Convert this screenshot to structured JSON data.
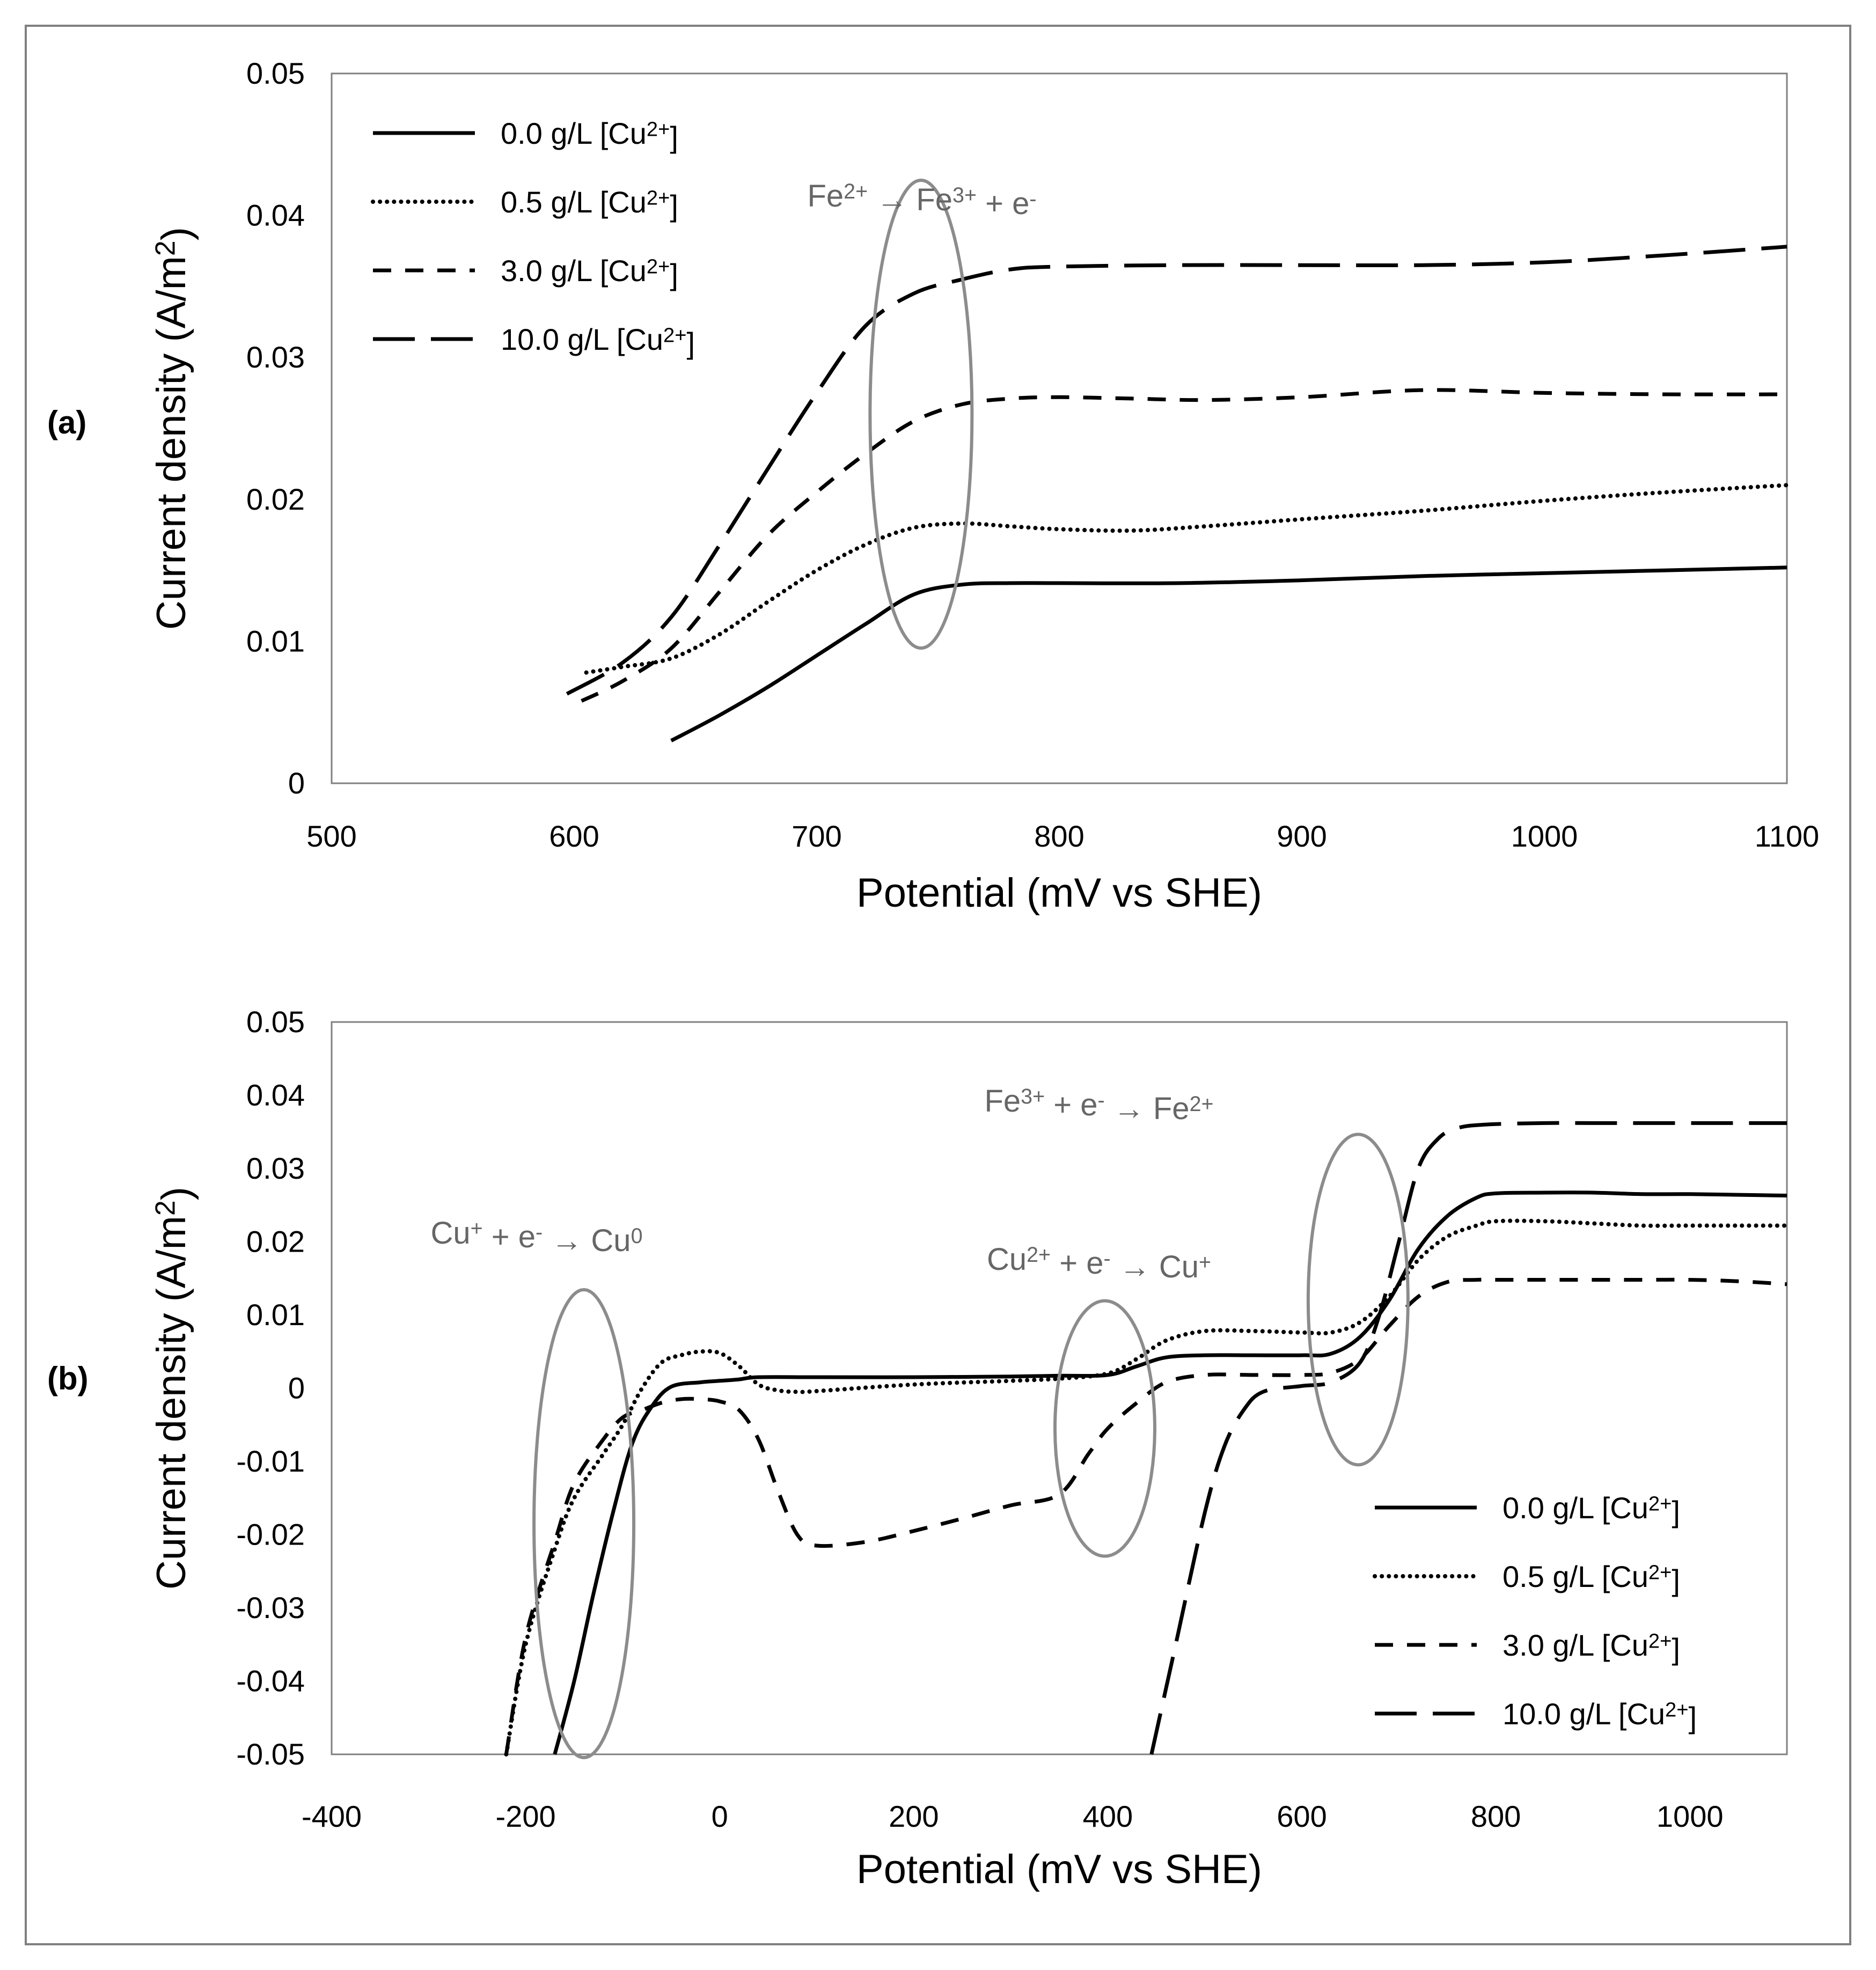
{
  "legend_labels": [
    "0.0 g/L [Cu2+]",
    "0.5 g/L [Cu2+]",
    "3.0 g/L [Cu2+]",
    "10.0 g/L [Cu2+]"
  ],
  "chart_data": [
    {
      "panel_label": "(a)",
      "type": "line",
      "title": "",
      "xlabel": "Potential (mV vs SHE)",
      "ylabel": "Current density (A/m2)",
      "xlim": [
        500,
        1100
      ],
      "ylim": [
        0,
        0.05
      ],
      "x_ticks": [
        "500",
        "600",
        "700",
        "800",
        "900",
        "1000",
        "1100"
      ],
      "y_ticks": [
        "0",
        "0.01",
        "0.02",
        "0.03",
        "0.04",
        "0.05"
      ],
      "legend_position": "top-left",
      "annotations": [
        {
          "text": "Fe2+ → Fe3+ + e-",
          "x": 743,
          "y": 0.026
        }
      ],
      "series": [
        {
          "name": "0.0 g/L [Cu2+]",
          "x": [
            640,
            660,
            680,
            700,
            720,
            740,
            760,
            780,
            800,
            850,
            900,
            950,
            1000,
            1050,
            1100
          ],
          "y": [
            0.003,
            0.0048,
            0.0068,
            0.009,
            0.0112,
            0.0133,
            0.014,
            0.0141,
            0.0141,
            0.0141,
            0.0143,
            0.0146,
            0.0148,
            0.015,
            0.0152
          ]
        },
        {
          "name": "0.5 g/L [Cu2+]",
          "x": [
            605,
            620,
            640,
            660,
            680,
            700,
            720,
            740,
            760,
            780,
            800,
            830,
            860,
            900,
            950,
            1000,
            1050,
            1100
          ],
          "y": [
            0.0078,
            0.0082,
            0.0088,
            0.0105,
            0.0128,
            0.015,
            0.0168,
            0.018,
            0.0183,
            0.0181,
            0.0179,
            0.0178,
            0.0181,
            0.0186,
            0.0192,
            0.0199,
            0.0205,
            0.021
          ]
        },
        {
          "name": "3.0 g/L [Cu2+]",
          "x": [
            603,
            620,
            640,
            660,
            680,
            700,
            720,
            740,
            760,
            780,
            800,
            830,
            860,
            900,
            950,
            1000,
            1050,
            1100
          ],
          "y": [
            0.0058,
            0.0072,
            0.0095,
            0.0135,
            0.0175,
            0.0205,
            0.0232,
            0.0255,
            0.0267,
            0.0271,
            0.0272,
            0.0271,
            0.027,
            0.0272,
            0.0277,
            0.0275,
            0.0274,
            0.0274
          ]
        },
        {
          "name": "10.0 g/L [Cu2+]",
          "x": [
            597,
            620,
            640,
            660,
            680,
            700,
            720,
            740,
            760,
            780,
            800,
            850,
            900,
            950,
            1000,
            1050,
            1100
          ],
          "y": [
            0.0063,
            0.0085,
            0.0117,
            0.0168,
            0.0222,
            0.0275,
            0.0322,
            0.0345,
            0.0355,
            0.0362,
            0.0364,
            0.0365,
            0.0365,
            0.0365,
            0.0367,
            0.0372,
            0.0378
          ]
        }
      ]
    },
    {
      "panel_label": "(b)",
      "type": "line",
      "title": "",
      "xlabel": "Potential (mV vs SHE)",
      "ylabel": "Current density (A/m2)",
      "xlim": [
        -400,
        1100
      ],
      "ylim": [
        -0.05,
        0.05
      ],
      "x_ticks": [
        "-400",
        "-200",
        "0",
        "200",
        "400",
        "600",
        "800",
        "1000"
      ],
      "y_ticks": [
        "-0.05",
        "-0.04",
        "-0.03",
        "-0.02",
        "-0.01",
        "0",
        "0.01",
        "0.02",
        "0.03",
        "0.04",
        "0.05"
      ],
      "legend_position": "bottom-right",
      "annotations": [
        {
          "text": "Cu+ + e- → Cu0",
          "x": -140,
          "y": -0.0185
        },
        {
          "text": "Cu2+ + e- → Cu+",
          "x": 397,
          "y": -0.0055
        },
        {
          "text": "Fe3+ + e- → Fe2+",
          "x": 658,
          "y": 0.0121
        }
      ],
      "series": [
        {
          "name": "0.0 g/L [Cu2+]",
          "x": [
            -170,
            -150,
            -130,
            -110,
            -90,
            -70,
            -50,
            -20,
            0,
            20,
            40,
            100,
            200,
            300,
            350,
            400,
            430,
            460,
            500,
            550,
            600,
            630,
            660,
            690,
            720,
            750,
            780,
            800,
            850,
            900,
            950,
            1000,
            1050,
            1100
          ],
          "y": [
            -0.05,
            -0.04,
            -0.028,
            -0.017,
            -0.0075,
            -0.0025,
            0.0002,
            0.0008,
            0.001,
            0.0012,
            0.0015,
            0.0015,
            0.0015,
            0.0016,
            0.0017,
            0.0018,
            0.003,
            0.0042,
            0.0045,
            0.0045,
            0.0045,
            0.0047,
            0.007,
            0.012,
            0.019,
            0.0235,
            0.026,
            0.0266,
            0.0267,
            0.0267,
            0.0265,
            0.0265,
            0.0264,
            0.0263
          ]
        },
        {
          "name": "0.5 g/L [Cu2+]",
          "x": [
            -220,
            -200,
            -170,
            -150,
            -120,
            -100,
            -80,
            -60,
            -40,
            -20,
            0,
            20,
            40,
            60,
            80,
            100,
            200,
            300,
            350,
            400,
            430,
            460,
            500,
            550,
            600,
            630,
            660,
            690,
            720,
            750,
            780,
            800,
            850,
            900,
            950,
            1000,
            1050,
            1100
          ],
          "y": [
            -0.05,
            -0.035,
            -0.022,
            -0.015,
            -0.009,
            -0.005,
            0.0,
            0.0035,
            0.0045,
            0.005,
            0.0048,
            0.003,
            0.0005,
            -0.0003,
            -0.0005,
            -0.0004,
            0.0005,
            0.001,
            0.0013,
            0.002,
            0.004,
            0.0065,
            0.0078,
            0.0078,
            0.0076,
            0.0076,
            0.009,
            0.0125,
            0.0175,
            0.0207,
            0.0222,
            0.0228,
            0.0228,
            0.0225,
            0.0222,
            0.0222,
            0.0222,
            0.0222
          ]
        },
        {
          "name": "3.0 g/L [Cu2+]",
          "x": [
            -220,
            -200,
            -170,
            -150,
            -120,
            -100,
            -80,
            -60,
            -40,
            -20,
            0,
            20,
            40,
            60,
            80,
            100,
            150,
            200,
            250,
            300,
            350,
            380,
            400,
            430,
            460,
            500,
            550,
            600,
            630,
            660,
            690,
            720,
            750,
            780,
            800,
            850,
            900,
            950,
            1000,
            1050,
            1100
          ],
          "y": [
            -0.05,
            -0.034,
            -0.021,
            -0.013,
            -0.007,
            -0.004,
            -0.003,
            -0.002,
            -0.0015,
            -0.0015,
            -0.0018,
            -0.003,
            -0.007,
            -0.014,
            -0.02,
            -0.0215,
            -0.021,
            -0.0195,
            -0.0178,
            -0.016,
            -0.0145,
            -0.009,
            -0.0055,
            -0.002,
            0.0008,
            0.0018,
            0.0018,
            0.0018,
            0.0021,
            0.004,
            0.0085,
            0.0125,
            0.0145,
            0.0148,
            0.0148,
            0.0148,
            0.0148,
            0.0148,
            0.0148,
            0.0146,
            0.0142
          ]
        },
        {
          "name": "10.0 g/L [Cu2+]",
          "x": [
            445,
            470,
            500,
            520,
            540,
            560,
            600,
            630,
            660,
            680,
            700,
            720,
            740,
            760,
            790,
            850,
            900,
            1000,
            1050,
            1100
          ],
          "y": [
            -0.05,
            -0.035,
            -0.017,
            -0.008,
            -0.003,
            -0.0005,
            0.0003,
            0.0008,
            0.0035,
            0.01,
            0.02,
            0.03,
            0.034,
            0.0355,
            0.036,
            0.0362,
            0.0362,
            0.0362,
            0.0362,
            0.0362
          ]
        }
      ]
    }
  ]
}
